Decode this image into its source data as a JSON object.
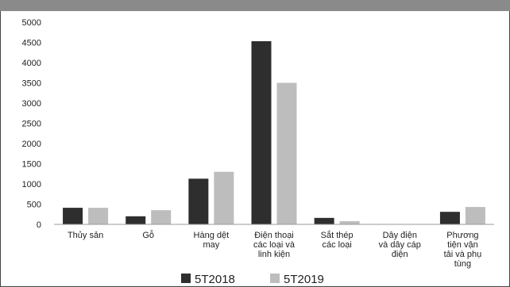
{
  "chart_data": {
    "type": "bar",
    "categories": [
      [
        "Thủy sản"
      ],
      [
        "Gỗ"
      ],
      [
        "Hàng dệt",
        "may"
      ],
      [
        "Điện thoại",
        "các loại và",
        "linh kiện"
      ],
      [
        "Sắt thép",
        "các loại"
      ],
      [
        "Dây điện",
        "và dây cáp",
        "điện"
      ],
      [
        "Phương",
        "tiện vận",
        "tải và phụ",
        "tùng"
      ]
    ],
    "series": [
      {
        "name": "5T2018",
        "color": "#2e2e2e",
        "values": [
          410,
          200,
          1130,
          4530,
          160,
          0,
          310
        ]
      },
      {
        "name": "5T2019",
        "color": "#bdbdbd",
        "values": [
          410,
          350,
          1300,
          3500,
          80,
          0,
          430
        ]
      }
    ],
    "ylim": [
      0,
      5000
    ],
    "yticks": [
      0,
      500,
      1000,
      1500,
      2000,
      2500,
      3000,
      3500,
      4000,
      4500,
      5000
    ],
    "grid": false,
    "legend_position": "bottom"
  }
}
